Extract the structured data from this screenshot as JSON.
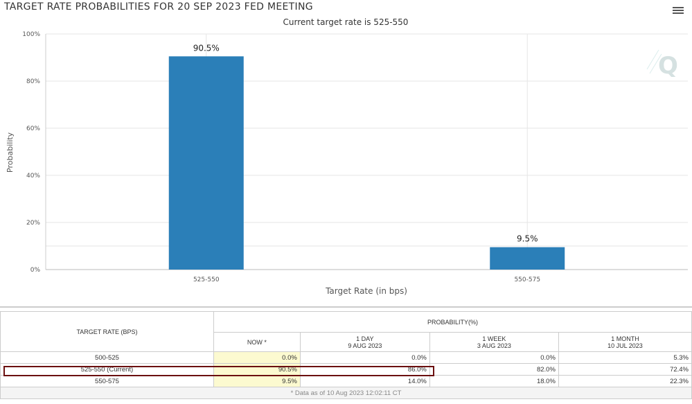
{
  "title": "TARGET RATE PROBABILITIES FOR 20 SEP 2023 FED MEETING",
  "menu_icon": "hamburger-menu-icon",
  "chart_data": {
    "type": "bar",
    "title": "TARGET RATE PROBABILITIES FOR 20 SEP 2023 FED MEETING",
    "subtitle": "Current target rate is 525-550",
    "categories": [
      "525-550",
      "550-575"
    ],
    "values": [
      90.5,
      9.5
    ],
    "data_labels": [
      "90.5%",
      "9.5%"
    ],
    "xlabel": "Target Rate (in bps)",
    "ylabel": "Probability",
    "ylim": [
      0,
      100
    ],
    "yticks": [
      "0%",
      "20%",
      "40%",
      "60%",
      "80%",
      "100%"
    ],
    "grid": true,
    "bar_color": "#2b7fb8"
  },
  "table": {
    "target_header": "TARGET RATE (BPS)",
    "prob_header": "PROBABILITY(%)",
    "columns": [
      {
        "label": "NOW *",
        "date": ""
      },
      {
        "label": "1 DAY",
        "date": "9 AUG 2023"
      },
      {
        "label": "1 WEEK",
        "date": "3 AUG 2023"
      },
      {
        "label": "1 MONTH",
        "date": "10 JUL 2023"
      }
    ],
    "rows": [
      {
        "rate": "500-525",
        "values": [
          "0.0%",
          "0.0%",
          "0.0%",
          "5.3%"
        ]
      },
      {
        "rate": "525-550 (Current)",
        "values": [
          "90.5%",
          "86.0%",
          "82.0%",
          "72.4%"
        ]
      },
      {
        "rate": "550-575",
        "values": [
          "9.5%",
          "14.0%",
          "18.0%",
          "22.3%"
        ]
      }
    ],
    "footnote": "* Data as of 10 Aug 2023 12:02:11 CT"
  }
}
